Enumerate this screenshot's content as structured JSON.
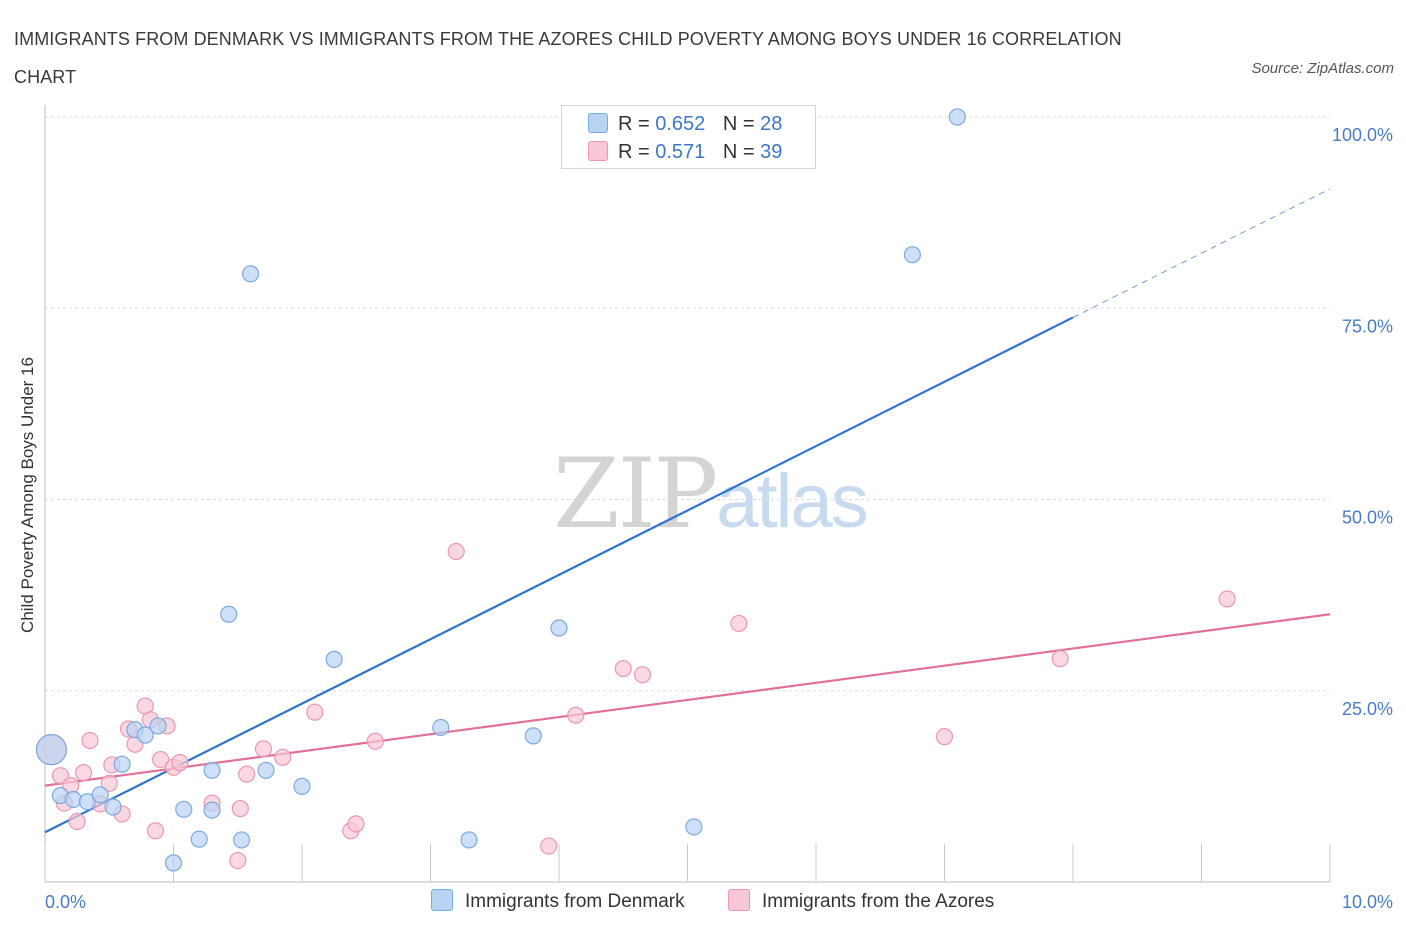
{
  "title": "IMMIGRANTS FROM DENMARK VS IMMIGRANTS FROM THE AZORES CHILD POVERTY AMONG BOYS UNDER 16 CORRELATION CHART",
  "source": "Source: ZipAtlas.com",
  "watermark": {
    "zip": "ZIP",
    "atlas": "atlas"
  },
  "legend": {
    "rows": [
      {
        "r_label": "R =",
        "r_value": "0.652",
        "n_label": "N =",
        "n_value": "28"
      },
      {
        "r_label": "R =",
        "r_value": "0.571",
        "n_label": "N =",
        "n_value": "39"
      }
    ]
  },
  "bottom_legend": [
    "Immigrants from Denmark",
    "Immigrants from the Azores"
  ],
  "colors": {
    "denmark_fill": "#b9d3f3",
    "denmark_stroke": "#7aaae0",
    "denmark_line": "#2f74c9",
    "azores_fill": "#f8c7d6",
    "azores_stroke": "#ec97b2",
    "azores_line": "#e2709a",
    "grid": "#dcdcdc",
    "tick_text": "#4a7cc6"
  },
  "chart_data": {
    "type": "scatter",
    "title": "IMMIGRANTS FROM DENMARK VS IMMIGRANTS FROM THE AZORES CHILD POVERTY AMONG BOYS UNDER 16 CORRELATION CHART",
    "xlabel": "",
    "ylabel": "Child Poverty Among Boys Under 16",
    "xlim": [
      0,
      10
    ],
    "ylim": [
      0,
      100
    ],
    "x_tick_labels": [
      "0.0%",
      "10.0%"
    ],
    "y_ticks": [
      25,
      50,
      75,
      100
    ],
    "y_tick_labels": [
      "25.0%",
      "50.0%",
      "75.0%",
      "100.0%"
    ],
    "grid": true,
    "legend_position": "top-center",
    "series": [
      {
        "name": "Immigrants from Denmark",
        "R": 0.652,
        "N": 28,
        "points": [
          [
            0.05,
            17.3
          ],
          [
            0.12,
            11.3
          ],
          [
            0.22,
            10.8
          ],
          [
            0.33,
            10.5
          ],
          [
            0.43,
            11.4
          ],
          [
            0.53,
            9.8
          ],
          [
            0.6,
            15.4
          ],
          [
            0.7,
            19.9
          ],
          [
            0.78,
            19.2
          ],
          [
            0.88,
            20.4
          ],
          [
            1.0,
            2.5
          ],
          [
            1.08,
            9.5
          ],
          [
            1.2,
            5.6
          ],
          [
            1.3,
            14.6
          ],
          [
            1.3,
            9.4
          ],
          [
            1.43,
            35.0
          ],
          [
            1.53,
            5.5
          ],
          [
            1.6,
            79.5
          ],
          [
            1.72,
            14.6
          ],
          [
            2.0,
            12.5
          ],
          [
            2.25,
            29.1
          ],
          [
            3.08,
            20.2
          ],
          [
            3.3,
            5.5
          ],
          [
            3.8,
            19.1
          ],
          [
            4.0,
            33.2
          ],
          [
            5.05,
            7.2
          ],
          [
            6.75,
            82.0
          ],
          [
            7.1,
            100.0
          ]
        ],
        "trend": {
          "x": [
            0.0,
            8.0
          ],
          "y": [
            6.5,
            73.8
          ],
          "dashed_to": [
            10.0,
            90.6
          ]
        }
      },
      {
        "name": "Immigrants from the Azores",
        "R": 0.571,
        "N": 39,
        "points": [
          [
            0.05,
            17.3
          ],
          [
            0.12,
            13.9
          ],
          [
            0.15,
            10.3
          ],
          [
            0.2,
            12.6
          ],
          [
            0.25,
            7.9
          ],
          [
            0.3,
            14.3
          ],
          [
            0.35,
            18.5
          ],
          [
            0.43,
            10.2
          ],
          [
            0.5,
            12.9
          ],
          [
            0.52,
            15.3
          ],
          [
            0.6,
            8.9
          ],
          [
            0.65,
            20.0
          ],
          [
            0.7,
            18.0
          ],
          [
            0.78,
            23.0
          ],
          [
            0.82,
            21.2
          ],
          [
            0.86,
            6.7
          ],
          [
            0.9,
            16.0
          ],
          [
            0.95,
            20.4
          ],
          [
            1.0,
            15.0
          ],
          [
            1.05,
            15.6
          ],
          [
            1.3,
            10.3
          ],
          [
            1.5,
            2.8
          ],
          [
            1.52,
            9.6
          ],
          [
            1.57,
            14.1
          ],
          [
            1.7,
            17.4
          ],
          [
            1.85,
            16.3
          ],
          [
            2.1,
            22.2
          ],
          [
            2.38,
            6.7
          ],
          [
            2.42,
            7.6
          ],
          [
            2.57,
            18.4
          ],
          [
            3.2,
            43.2
          ],
          [
            3.92,
            4.7
          ],
          [
            4.13,
            21.8
          ],
          [
            4.5,
            27.9
          ],
          [
            4.65,
            27.1
          ],
          [
            5.4,
            33.8
          ],
          [
            7.0,
            19.0
          ],
          [
            7.9,
            29.2
          ],
          [
            9.2,
            37.0
          ]
        ],
        "trend": {
          "x": [
            0.0,
            10.0
          ],
          "y": [
            12.6,
            35.0
          ]
        }
      }
    ]
  }
}
